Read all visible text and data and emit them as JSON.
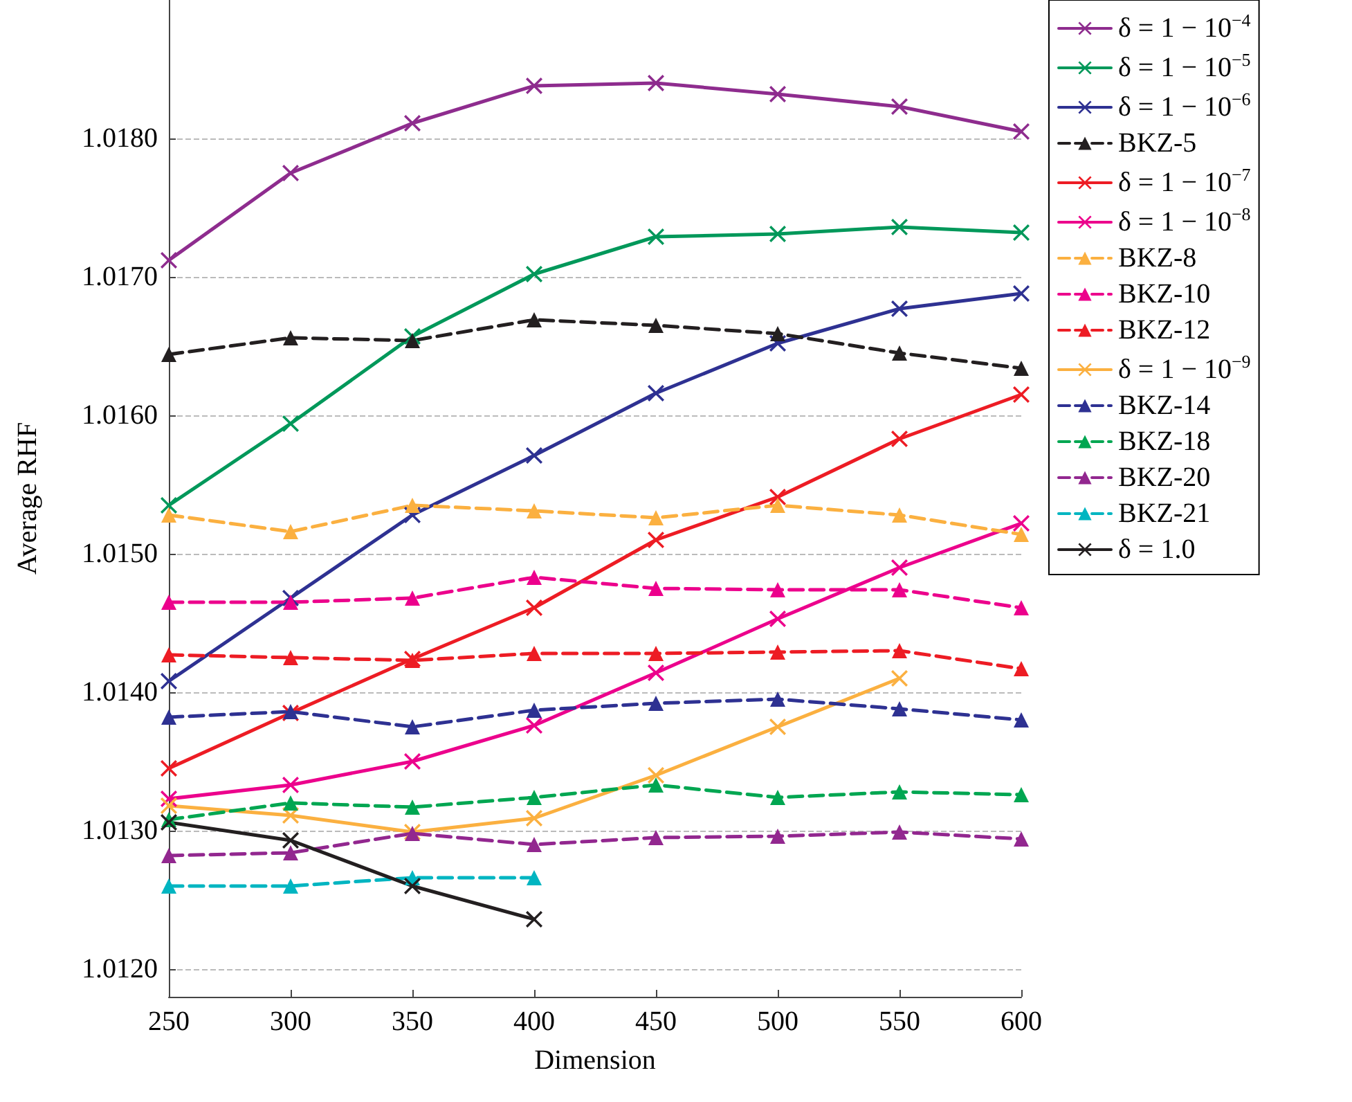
{
  "chart_data": {
    "type": "line",
    "xlabel": "Dimension",
    "ylabel": "Average RHF",
    "x": [
      250,
      300,
      350,
      400,
      450,
      500,
      550,
      600
    ],
    "xlim": [
      250,
      600
    ],
    "xticks": [
      250,
      300,
      350,
      400,
      450,
      500,
      550,
      600
    ],
    "ylim": [
      1.0118,
      1.019
    ],
    "yticks": [
      {
        "value": 1.012,
        "label": "1.0120"
      },
      {
        "value": 1.013,
        "label": "1.0130"
      },
      {
        "value": 1.014,
        "label": "1.0140"
      },
      {
        "value": 1.015,
        "label": "1.0150"
      },
      {
        "value": 1.016,
        "label": "1.0160"
      },
      {
        "value": 1.017,
        "label": "1.0170"
      },
      {
        "value": 1.018,
        "label": "1.0180"
      }
    ],
    "grid": "y",
    "legend": "right",
    "series": [
      {
        "name": "δ = 1 − 10$^{−4}$",
        "color": "#8e2c8e",
        "marker": "cross",
        "line_style": "solid",
        "values": [
          1.01712,
          1.01775,
          1.01811,
          1.01838,
          1.0184,
          1.01832,
          1.01823,
          1.01805
        ]
      },
      {
        "name": "δ = 1 − 10$^{−5}$",
        "color": "#00985a",
        "marker": "cross",
        "line_style": "solid",
        "values": [
          1.01535,
          1.01594,
          1.01657,
          1.01702,
          1.01729,
          1.01731,
          1.01736,
          1.01732
        ]
      },
      {
        "name": "δ = 1 − 10$^{−6}$",
        "color": "#2e3192",
        "marker": "cross",
        "line_style": "solid",
        "values": [
          1.01408,
          1.01468,
          1.01528,
          1.01571,
          1.01616,
          1.01652,
          1.01677,
          1.01688
        ]
      },
      {
        "name": "BKZ-5",
        "color": "#231f20",
        "marker": "triangle",
        "line_style": "dashed",
        "values": [
          1.01644,
          1.01656,
          1.01654,
          1.01669,
          1.01665,
          1.01659,
          1.01645,
          1.01634
        ]
      },
      {
        "name": "δ = 1 − 10$^{−7}$",
        "color": "#ed1c24",
        "marker": "cross",
        "line_style": "solid",
        "values": [
          1.01345,
          1.01385,
          1.01424,
          1.01461,
          1.0151,
          1.01541,
          1.01583,
          1.01615
        ]
      },
      {
        "name": "δ = 1 − 10$^{−8}$",
        "color": "#ec008c",
        "marker": "cross",
        "line_style": "solid",
        "values": [
          1.01323,
          1.01333,
          1.0135,
          1.01376,
          1.01414,
          1.01453,
          1.0149,
          1.01522
        ]
      },
      {
        "name": "BKZ-8",
        "color": "#fbb040",
        "marker": "triangle",
        "line_style": "dashed",
        "values": [
          1.01528,
          1.01516,
          1.01535,
          1.01531,
          1.01526,
          1.01535,
          1.01528,
          1.01514
        ]
      },
      {
        "name": "BKZ-10",
        "color": "#ec008c",
        "marker": "triangle",
        "line_style": "dashed",
        "values": [
          1.01465,
          1.01465,
          1.01468,
          1.01483,
          1.01475,
          1.01474,
          1.01474,
          1.01461
        ]
      },
      {
        "name": "BKZ-12",
        "color": "#ed1c24",
        "marker": "triangle",
        "line_style": "dashed",
        "values": [
          1.01427,
          1.01425,
          1.01423,
          1.01428,
          1.01428,
          1.01429,
          1.0143,
          1.01417
        ]
      },
      {
        "name": "δ = 1 − 10$^{−9}$",
        "color": "#fbb040",
        "marker": "cross",
        "line_style": "solid",
        "values": [
          1.01318,
          1.01311,
          1.01299,
          1.01309,
          1.0134,
          1.01375,
          1.0141,
          null
        ]
      },
      {
        "name": "BKZ-14",
        "color": "#2e3192",
        "marker": "triangle",
        "line_style": "dashed",
        "values": [
          1.01382,
          1.01386,
          1.01375,
          1.01387,
          1.01392,
          1.01395,
          1.01388,
          1.0138
        ]
      },
      {
        "name": "BKZ-18",
        "color": "#00a651",
        "marker": "triangle",
        "line_style": "dashed",
        "values": [
          1.01308,
          1.0132,
          1.01317,
          1.01324,
          1.01333,
          1.01324,
          1.01328,
          1.01326
        ]
      },
      {
        "name": "BKZ-20",
        "color": "#92278f",
        "marker": "triangle",
        "line_style": "dashed",
        "values": [
          1.01282,
          1.01284,
          1.01298,
          1.0129,
          1.01295,
          1.01296,
          1.01299,
          1.01294
        ]
      },
      {
        "name": "BKZ-21",
        "color": "#00b5c1",
        "marker": "triangle",
        "line_style": "dashed",
        "values": [
          1.0126,
          1.0126,
          1.01266,
          1.01266,
          null,
          null,
          null,
          null
        ]
      },
      {
        "name": "δ = 1.0",
        "color": "#231f20",
        "marker": "cross",
        "line_style": "solid",
        "values": [
          1.01306,
          1.01293,
          1.0126,
          1.01236,
          null,
          null,
          null,
          null
        ]
      }
    ]
  }
}
